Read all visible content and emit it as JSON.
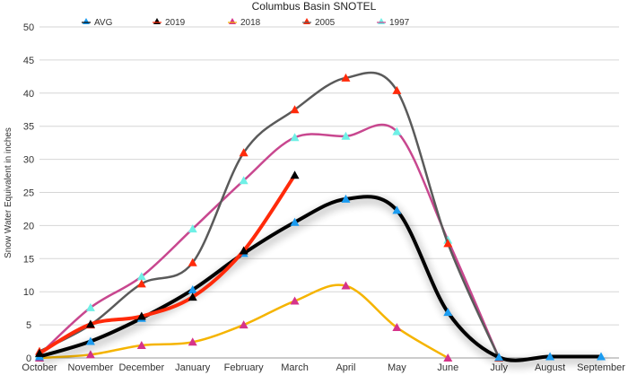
{
  "chart_data": {
    "type": "line",
    "title": "Columbus Basin SNOTEL",
    "xlabel": "",
    "ylabel": "Snow Water Equivalent in inches",
    "ylim": [
      0,
      50
    ],
    "yticks": [
      0,
      5,
      10,
      15,
      20,
      25,
      30,
      35,
      40,
      45,
      50
    ],
    "grid": true,
    "legend_position": "top",
    "categories": [
      "October",
      "November",
      "December",
      "January",
      "February",
      "March",
      "April",
      "May",
      "June",
      "July",
      "August",
      "September"
    ],
    "series": [
      {
        "name": "AVG",
        "line_color": "#000000",
        "marker_color": "#1a9bf0",
        "shadow": true,
        "values": [
          0.2,
          2.5,
          6.0,
          10.3,
          15.8,
          20.5,
          24.0,
          22.3,
          6.9,
          0.1,
          0.2,
          0.2
        ]
      },
      {
        "name": "2019",
        "line_color": "#ff2a0a",
        "marker_color": "#000000",
        "shadow": false,
        "values": [
          0.7,
          5.1,
          6.3,
          9.2,
          16.2,
          27.6,
          null,
          null,
          null,
          null,
          null,
          null
        ]
      },
      {
        "name": "2018",
        "line_color": "#f5b400",
        "marker_color": "#d6338a",
        "shadow": false,
        "values": [
          0.0,
          0.5,
          1.9,
          2.4,
          5.0,
          8.6,
          10.9,
          4.6,
          0.0,
          null,
          null,
          null
        ]
      },
      {
        "name": "2005",
        "line_color": "#5a5a5a",
        "marker_color": "#ff2a0a",
        "shadow": false,
        "values": [
          1.0,
          5.0,
          11.2,
          14.4,
          31.0,
          37.5,
          42.3,
          40.4,
          17.3,
          0.0,
          null,
          null
        ]
      },
      {
        "name": "1997",
        "line_color": "#c8478f",
        "marker_color": "#6ff0e6",
        "shadow": false,
        "values": [
          0.5,
          7.6,
          12.3,
          19.5,
          26.8,
          33.3,
          33.5,
          34.2,
          17.8,
          0.0,
          null,
          null
        ]
      }
    ]
  }
}
